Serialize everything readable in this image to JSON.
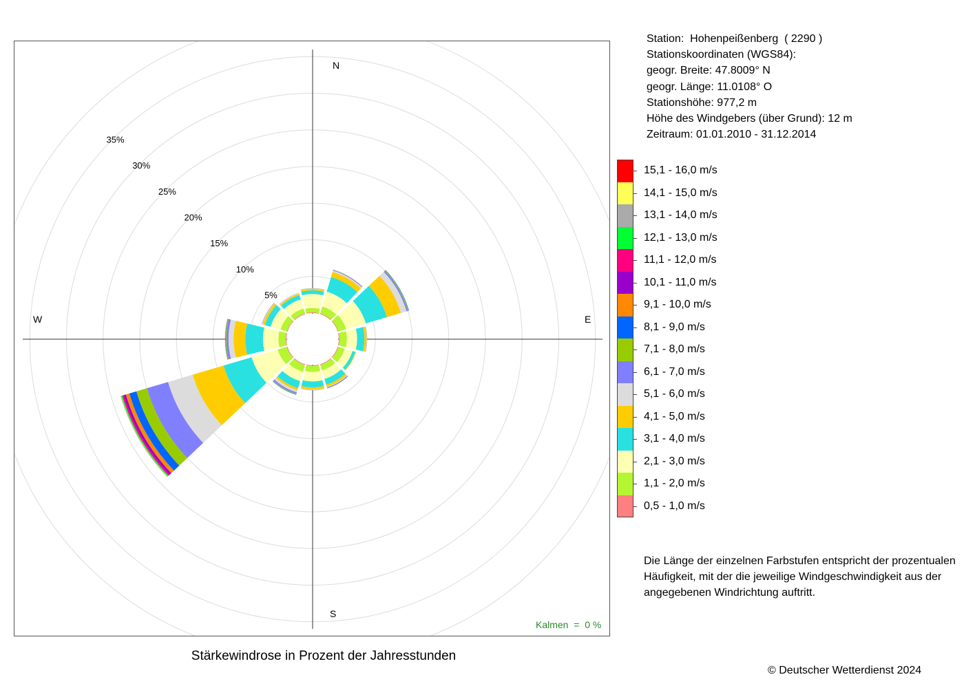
{
  "station": {
    "lines": [
      "Station:  Hohenpeißenberg  ( 2290 )",
      "Stationskoordinaten (WGS84):",
      "geogr. Breite: 47.8009° N",
      "geogr. Länge: 11.0108° O",
      "Stationshöhe: 977,2 m",
      "Höhe des Windgebers (über Grund): 12 m",
      "Zeitraum: 01.01.2010 - 31.12.2014"
    ]
  },
  "explanation": "Die Länge der einzelnen Farbstufen entspricht der prozentualen Häufigkeit, mit der die jeweilige Windgeschwindigkeit aus der angegebenen Windrichtung auftritt.",
  "copyright": "© Deutscher Wetterdienst  2024",
  "calms": "Kalmen  =  0 %",
  "chart_data": {
    "type": "wind-rose",
    "title": "Stärkewindrose in Prozent der Jahresstunden",
    "compass_labels": {
      "N": "N",
      "E": "E",
      "S": "S",
      "W": "W"
    },
    "radial_ticks": [
      "5%",
      "10%",
      "15%",
      "20%",
      "25%",
      "30%",
      "35%"
    ],
    "radial_tick_values": [
      5,
      10,
      15,
      20,
      25,
      30,
      35
    ],
    "radial_max": 40,
    "directions_deg": [
      0,
      30,
      60,
      90,
      120,
      150,
      180,
      210,
      240,
      270,
      300,
      330
    ],
    "speed_classes": [
      {
        "label": "0,5 - 1,0 m/s",
        "color": "#ff8080"
      },
      {
        "label": "1,1 - 2,0 m/s",
        "color": "#b5f531"
      },
      {
        "label": "2,1 - 3,0 m/s",
        "color": "#ffffb3"
      },
      {
        "label": "3,1 - 4,0 m/s",
        "color": "#29e1e1"
      },
      {
        "label": "4,1 - 5,0 m/s",
        "color": "#ffcc00"
      },
      {
        "label": "5,1 - 6,0 m/s",
        "color": "#dcdcdc"
      },
      {
        "label": "6,1 - 7,0 m/s",
        "color": "#8080ff"
      },
      {
        "label": "7,1 - 8,0 m/s",
        "color": "#99cc00"
      },
      {
        "label": "8,1 - 9,0 m/s",
        "color": "#0066ff"
      },
      {
        "label": "9,1 - 10,0 m/s",
        "color": "#ff8800"
      },
      {
        "label": "10,1 - 11,0 m/s",
        "color": "#9900cc"
      },
      {
        "label": "11,1 - 12,0 m/s",
        "color": "#ff0080"
      },
      {
        "label": "12,1 - 13,0 m/s",
        "color": "#00ff33"
      },
      {
        "label": "13,1 - 14,0 m/s",
        "color": "#aaaaaa"
      },
      {
        "label": "14,1 - 15,0 m/s",
        "color": "#ffff55"
      },
      {
        "label": "15,1 - 16,0 m/s",
        "color": "#ff0000"
      }
    ],
    "series": [
      {
        "direction": 0,
        "values": [
          0.1,
          0.6,
          1.9,
          0.5,
          0.2,
          0.05,
          0.03,
          0.02,
          0,
          0,
          0,
          0,
          0,
          0,
          0,
          0
        ]
      },
      {
        "direction": 30,
        "values": [
          0.1,
          1.0,
          2.1,
          2.1,
          0.7,
          0.2,
          0.1,
          0.03,
          0,
          0,
          0,
          0,
          0,
          0,
          0,
          0
        ]
      },
      {
        "direction": 60,
        "values": [
          0.1,
          1.1,
          2.8,
          3.0,
          2.0,
          0.8,
          0.2,
          0.1,
          0.05,
          0,
          0,
          0,
          0,
          0,
          0,
          0
        ]
      },
      {
        "direction": 90,
        "values": [
          0.1,
          1.0,
          1.4,
          1.0,
          0.3,
          0.05,
          0.03,
          0,
          0,
          0,
          0,
          0,
          0,
          0,
          0,
          0
        ]
      },
      {
        "direction": 120,
        "values": [
          0.1,
          0.9,
          1.1,
          0.4,
          0.1,
          0.02,
          0,
          0,
          0,
          0,
          0,
          0,
          0,
          0,
          0,
          0
        ]
      },
      {
        "direction": 150,
        "values": [
          0.1,
          0.8,
          1.2,
          0.8,
          0.3,
          0.1,
          0.1,
          0.05,
          0,
          0,
          0,
          0,
          0,
          0,
          0,
          0
        ]
      },
      {
        "direction": 180,
        "values": [
          0.1,
          0.8,
          1.3,
          0.8,
          0.3,
          0.1,
          0.02,
          0,
          0,
          0,
          0,
          0,
          0,
          0,
          0,
          0
        ]
      },
      {
        "direction": 210,
        "values": [
          0.1,
          1.0,
          1.3,
          1.0,
          0.3,
          0.3,
          0.2,
          0.1,
          0.05,
          0,
          0,
          0,
          0,
          0,
          0,
          0
        ]
      },
      {
        "direction": 240,
        "values": [
          0.1,
          1.3,
          3.7,
          4.0,
          4.4,
          3.5,
          3.0,
          1.5,
          1.0,
          0.5,
          0.3,
          0.2,
          0.15,
          0.05,
          0.03,
          0.02
        ]
      },
      {
        "direction": 270,
        "values": [
          0.1,
          1.0,
          2.1,
          2.4,
          1.6,
          0.7,
          0.3,
          0.1,
          0.05,
          0.03,
          0,
          0,
          0,
          0,
          0,
          0
        ]
      },
      {
        "direction": 300,
        "values": [
          0.1,
          0.9,
          1.4,
          0.8,
          0.3,
          0.1,
          0.05,
          0.02,
          0,
          0,
          0,
          0,
          0,
          0,
          0,
          0
        ]
      },
      {
        "direction": 330,
        "values": [
          0.1,
          0.7,
          1.3,
          0.6,
          0.2,
          0.1,
          0.03,
          0,
          0,
          0,
          0,
          0,
          0,
          0,
          0,
          0
        ]
      }
    ],
    "calms_percent": 0,
    "grid": true
  }
}
